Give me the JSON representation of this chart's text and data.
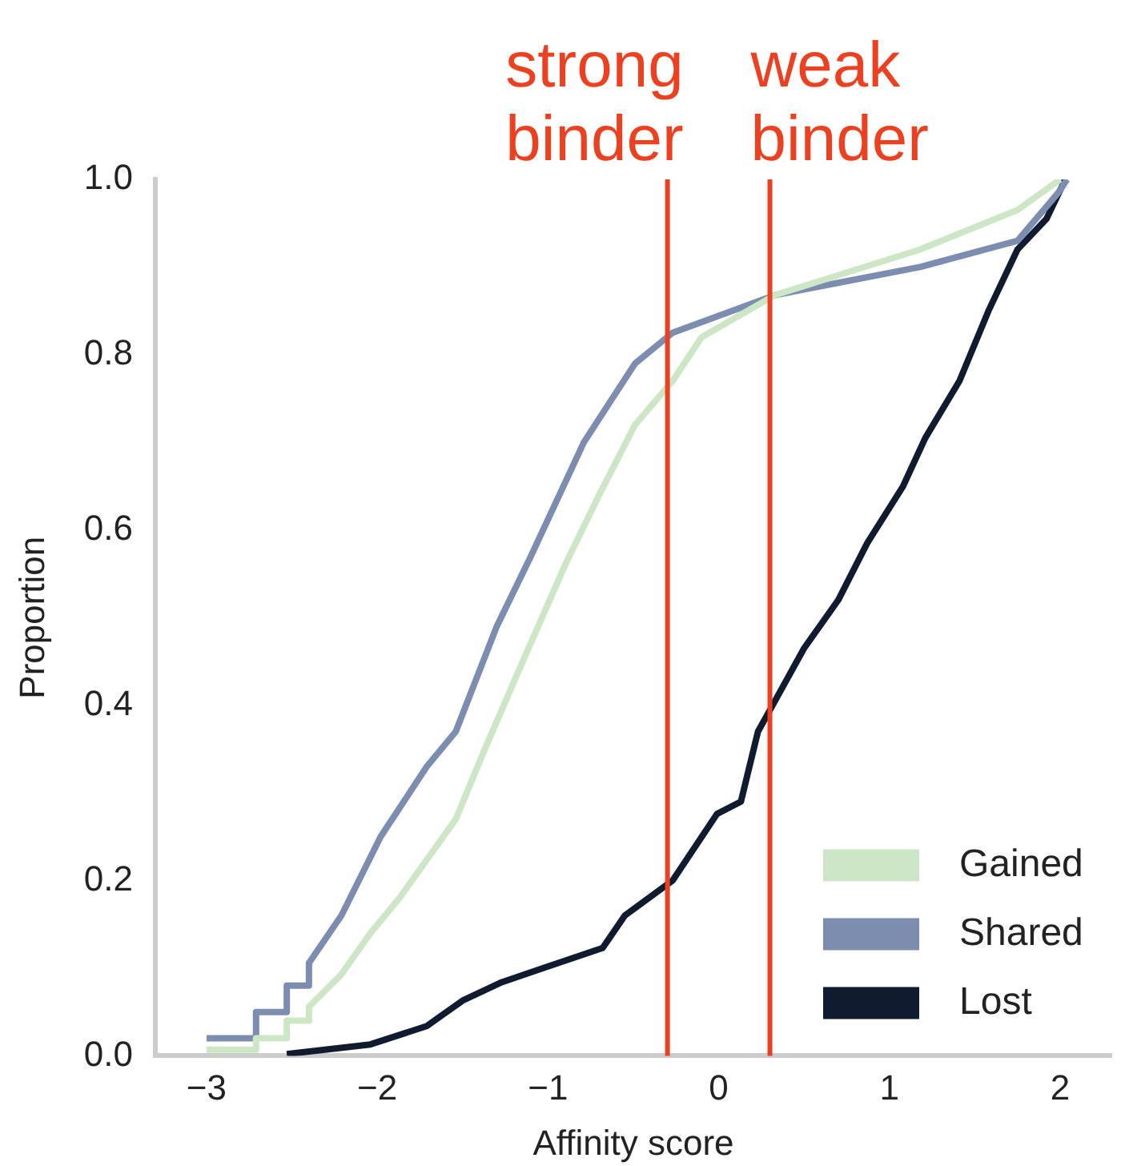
{
  "chart_data": {
    "type": "line",
    "xlabel": "Affinity score",
    "ylabel": "Proportion",
    "xlim": [
      -3.3,
      2.3
    ],
    "ylim": [
      0,
      1
    ],
    "xticks": [
      {
        "value": -3,
        "label": "−3"
      },
      {
        "value": -2,
        "label": "−2"
      },
      {
        "value": -1,
        "label": "−1"
      },
      0,
      1,
      2
    ],
    "yticks": [
      {
        "value": 0,
        "label": "0.0"
      },
      {
        "value": 0.2,
        "label": "0.2"
      },
      {
        "value": 0.4,
        "label": "0.4"
      },
      {
        "value": 0.6,
        "label": "0.6"
      },
      {
        "value": 0.8,
        "label": "0.8"
      },
      {
        "value": 1,
        "label": "1.0"
      }
    ],
    "grid": false,
    "legend": "bottom right",
    "marker": "none",
    "line_style": "solid",
    "ref_lines": [
      {
        "axis": "x",
        "value": -0.3,
        "label": "strong binder",
        "color": "#ec4020"
      },
      {
        "axis": "x",
        "value": 0.3,
        "label": "weak binder",
        "color": "#ec4020"
      }
    ],
    "series": [
      {
        "name": "Gained",
        "color": "#cde6c6",
        "x": [
          -3.0,
          -2.71,
          -2.71,
          -2.53,
          -2.53,
          -2.4,
          -2.4,
          -2.21,
          -2.04,
          -1.87,
          -1.54,
          -1.37,
          -1.17,
          -0.9,
          -0.7,
          -0.49,
          -0.27,
          -0.1,
          0.33,
          1.18,
          1.75,
          2.0
        ],
        "values": [
          0.007,
          0.007,
          0.02,
          0.02,
          0.04,
          0.04,
          0.056,
          0.093,
          0.14,
          0.18,
          0.27,
          0.35,
          0.44,
          0.56,
          0.64,
          0.72,
          0.77,
          0.82,
          0.868,
          0.92,
          0.965,
          1.0
        ]
      },
      {
        "name": "Shared",
        "color": "#7d8db0",
        "x": [
          -3.0,
          -2.71,
          -2.71,
          -2.53,
          -2.53,
          -2.4,
          -2.4,
          -2.21,
          -1.98,
          -1.71,
          -1.54,
          -1.3,
          -1.1,
          -0.79,
          -0.49,
          -0.27,
          0.33,
          1.18,
          1.75,
          1.99,
          2.04
        ],
        "values": [
          0.02,
          0.02,
          0.05,
          0.05,
          0.08,
          0.08,
          0.106,
          0.16,
          0.25,
          0.33,
          0.37,
          0.49,
          0.57,
          0.7,
          0.79,
          0.825,
          0.868,
          0.9,
          0.93,
          0.985,
          1.0
        ]
      },
      {
        "name": "Lost",
        "color": "#111b30",
        "x": [
          -2.53,
          -2.04,
          -1.71,
          -1.5,
          -1.27,
          -1.03,
          -0.68,
          -0.55,
          -0.27,
          -0.01,
          0.13,
          0.23,
          0.33,
          0.5,
          0.7,
          0.87,
          1.08,
          1.21,
          1.41,
          1.58,
          1.75,
          1.92,
          2.03
        ],
        "values": [
          0.002,
          0.013,
          0.034,
          0.063,
          0.084,
          0.1,
          0.123,
          0.16,
          0.2,
          0.276,
          0.29,
          0.37,
          0.405,
          0.465,
          0.52,
          0.585,
          0.65,
          0.705,
          0.77,
          0.85,
          0.92,
          0.955,
          1.0
        ]
      }
    ]
  }
}
